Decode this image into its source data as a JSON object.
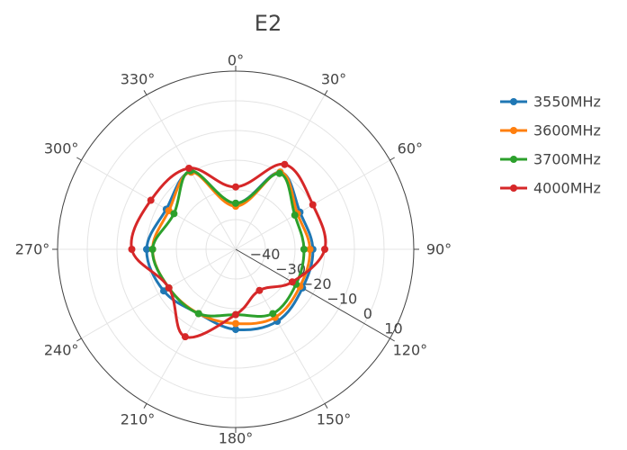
{
  "chart_data": {
    "type": "polar-line",
    "title": "E2",
    "radial_axis": {
      "range": [
        -50,
        10
      ],
      "tickvals": [
        -40,
        -30,
        -20,
        -10,
        0,
        10
      ],
      "ticklabels": [
        "−40",
        "−30",
        "−20",
        "−10",
        "0",
        "10"
      ],
      "angle_deg": 120
    },
    "angular_axis": {
      "rotation": "clockwise",
      "zero": "top",
      "tickvals": [
        0,
        30,
        60,
        90,
        120,
        150,
        180,
        210,
        240,
        270,
        300,
        330
      ],
      "ticklabels": [
        "0°",
        "30°",
        "60°",
        "90°",
        "120°",
        "150°",
        "180°",
        "210°",
        "240°",
        "270°",
        "300°",
        "330°"
      ]
    },
    "grid": true,
    "legend_position": "right",
    "theta": [
      0,
      30,
      60,
      90,
      120,
      150,
      180,
      210,
      240,
      270,
      300,
      330
    ],
    "series": [
      {
        "name": "3550MHz",
        "color": "#1f77b4",
        "r": [
          -34.5,
          -20,
          -25,
          -24,
          -24,
          -22,
          -23,
          -25,
          -22,
          -20,
          -23,
          -20
        ]
      },
      {
        "name": "3600MHz",
        "color": "#ff7f0e",
        "r": [
          -35.5,
          -20,
          -26,
          -25,
          -25,
          -23.5,
          -25,
          -25,
          -24,
          -22,
          -24,
          -20
        ]
      },
      {
        "name": "3700MHz",
        "color": "#2ca02c",
        "r": [
          -34.5,
          -20.5,
          -27,
          -27,
          -26.5,
          -25,
          -28,
          -25,
          -24,
          -22,
          -26,
          -19.5
        ]
      },
      {
        "name": "4000MHz",
        "color": "#d62728",
        "r": [
          -29,
          -17,
          -20,
          -20,
          -28,
          -34,
          -28,
          -16,
          -24,
          -15,
          -17,
          -18.5
        ]
      }
    ]
  }
}
